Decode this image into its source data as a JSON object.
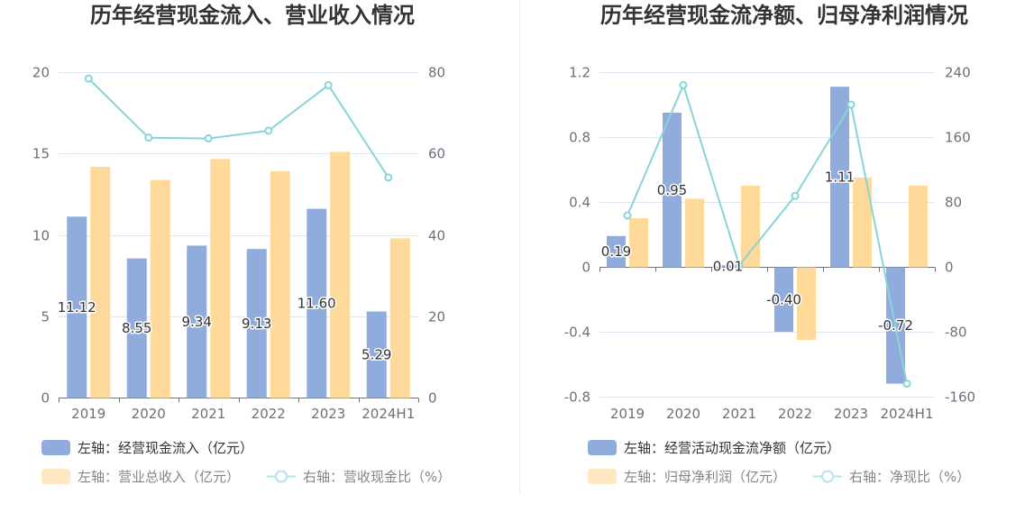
{
  "chart_data": [
    {
      "type": "bar",
      "title": "历年经营现金流入、营业收入情况",
      "categories": [
        "2019",
        "2020",
        "2021",
        "2022",
        "2023",
        "2024H1"
      ],
      "y_left": {
        "lim": [
          0,
          20
        ],
        "ticks": [
          "0",
          "5",
          "10",
          "15",
          "20"
        ]
      },
      "y_right": {
        "lim": [
          0,
          80
        ],
        "ticks": [
          "0",
          "20",
          "40",
          "60",
          "80"
        ]
      },
      "grid": true,
      "legend_position": "bottom-left",
      "series": [
        {
          "name": "左轴：经营现金流入（亿元）",
          "type": "bar",
          "axis": "left",
          "color": "#8FACDC",
          "values": [
            11.12,
            8.55,
            9.34,
            9.13,
            11.6,
            5.29
          ],
          "data_labels": [
            "11.12",
            "8.55",
            "9.34",
            "9.13",
            "11.60",
            "5.29"
          ]
        },
        {
          "name": "左轴：营业总收入（亿元）",
          "type": "bar",
          "axis": "left",
          "color": "#FFD999",
          "values": [
            14.18,
            13.37,
            14.66,
            13.91,
            15.1,
            9.78
          ]
        },
        {
          "name": "右轴：营收现金比（%）",
          "type": "line",
          "axis": "right",
          "color": "#88D4D8",
          "values": [
            78.4,
            63.9,
            63.7,
            65.6,
            76.8,
            54.1
          ]
        }
      ]
    },
    {
      "type": "bar",
      "title": "历年经营现金流净额、归母净利润情况",
      "categories": [
        "2019",
        "2020",
        "2021",
        "2022",
        "2023",
        "2024H1"
      ],
      "y_left": {
        "lim": [
          -0.8,
          1.2
        ],
        "ticks": [
          "-0.8",
          "-0.4",
          "0",
          "0.4",
          "0.8",
          "1.2"
        ]
      },
      "y_right": {
        "lim": [
          -160,
          240
        ],
        "ticks": [
          "-160",
          "-80",
          "0",
          "80",
          "160",
          "240"
        ]
      },
      "grid": true,
      "legend_position": "bottom-left",
      "series": [
        {
          "name": "左轴：经营活动现金流净额（亿元）",
          "type": "bar",
          "axis": "left",
          "color": "#8FACDC",
          "values": [
            0.19,
            0.95,
            0.01,
            -0.4,
            1.11,
            -0.72
          ],
          "data_labels": [
            "0.19",
            "0.95",
            "0.01",
            "-0.40",
            "1.11",
            "-0.72"
          ]
        },
        {
          "name": "左轴：归母净利润（亿元）",
          "type": "bar",
          "axis": "left",
          "color": "#FFD999",
          "values": [
            0.3,
            0.42,
            0.5,
            -0.45,
            0.55,
            0.5
          ]
        },
        {
          "name": "右轴：净现比（%）",
          "type": "line",
          "axis": "right",
          "color": "#88D4D8",
          "values": [
            63.3,
            224.0,
            2.0,
            87.5,
            200.0,
            -144.0
          ]
        }
      ]
    }
  ]
}
